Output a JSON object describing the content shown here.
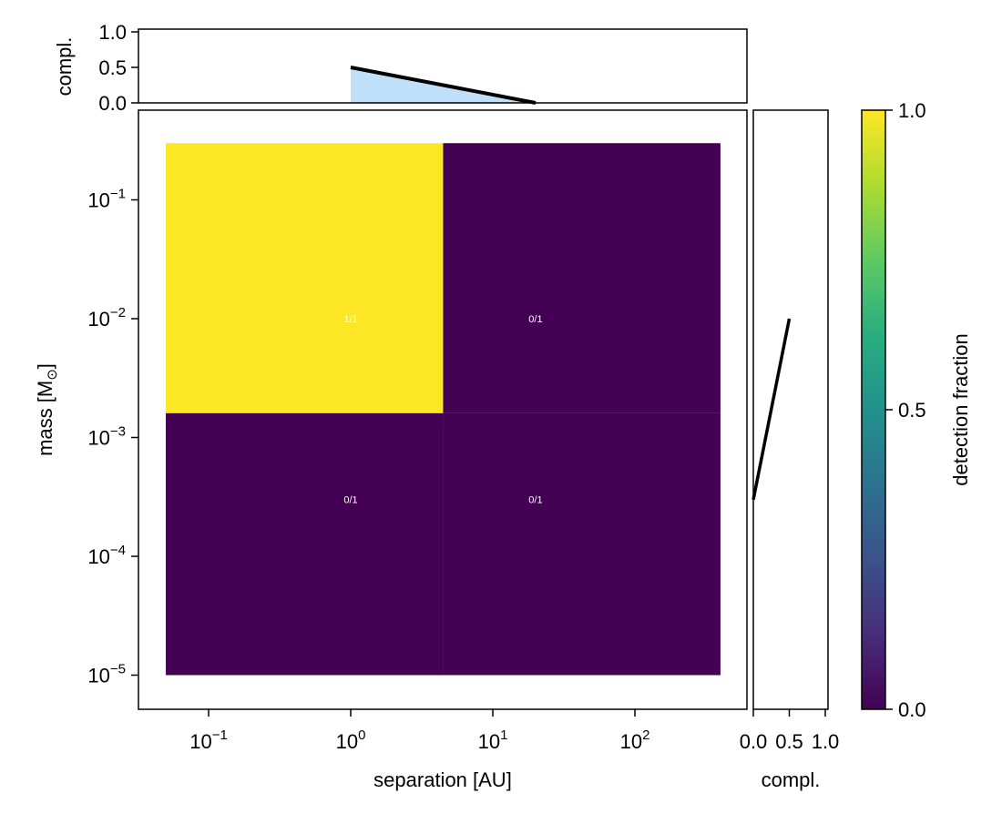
{
  "chart_data": {
    "type": "heatmap",
    "xlabel": "separation [AU]",
    "ylabel_main": "mass [M",
    "ylabel_sub": "⊙",
    "ylabel_end": "]",
    "x_scale": "log",
    "y_scale": "log",
    "x_edges": [
      0.05,
      4.47,
      400
    ],
    "y_edges": [
      1e-05,
      0.0016,
      0.3
    ],
    "cells": [
      {
        "x_center": 1,
        "y_center": 0.01,
        "value": 1.0,
        "label": "1/1"
      },
      {
        "x_center": 20,
        "y_center": 0.01,
        "value": 0.0,
        "label": "0/1"
      },
      {
        "x_center": 1,
        "y_center": 0.0003,
        "value": 0.0,
        "label": "0/1"
      },
      {
        "x_center": 20,
        "y_center": 0.0003,
        "value": 0.0,
        "label": "0/1"
      }
    ],
    "x_ticks": [
      {
        "value": 0.1,
        "base": "10",
        "exp": "−1"
      },
      {
        "value": 1,
        "base": "10",
        "exp": "0"
      },
      {
        "value": 10,
        "base": "10",
        "exp": "1"
      },
      {
        "value": 100,
        "base": "10",
        "exp": "2"
      }
    ],
    "y_ticks": [
      {
        "value": 0.1,
        "base": "10",
        "exp": "−1"
      },
      {
        "value": 0.01,
        "base": "10",
        "exp": "−2"
      },
      {
        "value": 0.001,
        "base": "10",
        "exp": "−3"
      },
      {
        "value": 0.0001,
        "base": "10",
        "exp": "−4"
      },
      {
        "value": 1e-05,
        "base": "10",
        "exp": "−5"
      }
    ],
    "top_marginal": {
      "ylabel": "compl.",
      "ylim": [
        0,
        1
      ],
      "y_ticks": [
        "0.0",
        "0.5",
        "1.0"
      ],
      "x": [
        1,
        20
      ],
      "y": [
        0.5,
        0.0
      ],
      "fill_color": "#bfdffb"
    },
    "right_marginal": {
      "xlabel": "compl.",
      "xlim": [
        0,
        1
      ],
      "x_ticks": [
        "0.0",
        "0.5",
        "1.0"
      ],
      "y": [
        0.0003,
        0.01
      ],
      "x": [
        0.0,
        0.5
      ]
    },
    "colorbar": {
      "label": "detection fraction",
      "range": [
        0,
        1
      ],
      "ticks": [
        "0.0",
        "0.5",
        "1.0"
      ],
      "colormap": "viridis"
    },
    "colors": {
      "low": "#440154",
      "high": "#fde725"
    }
  }
}
